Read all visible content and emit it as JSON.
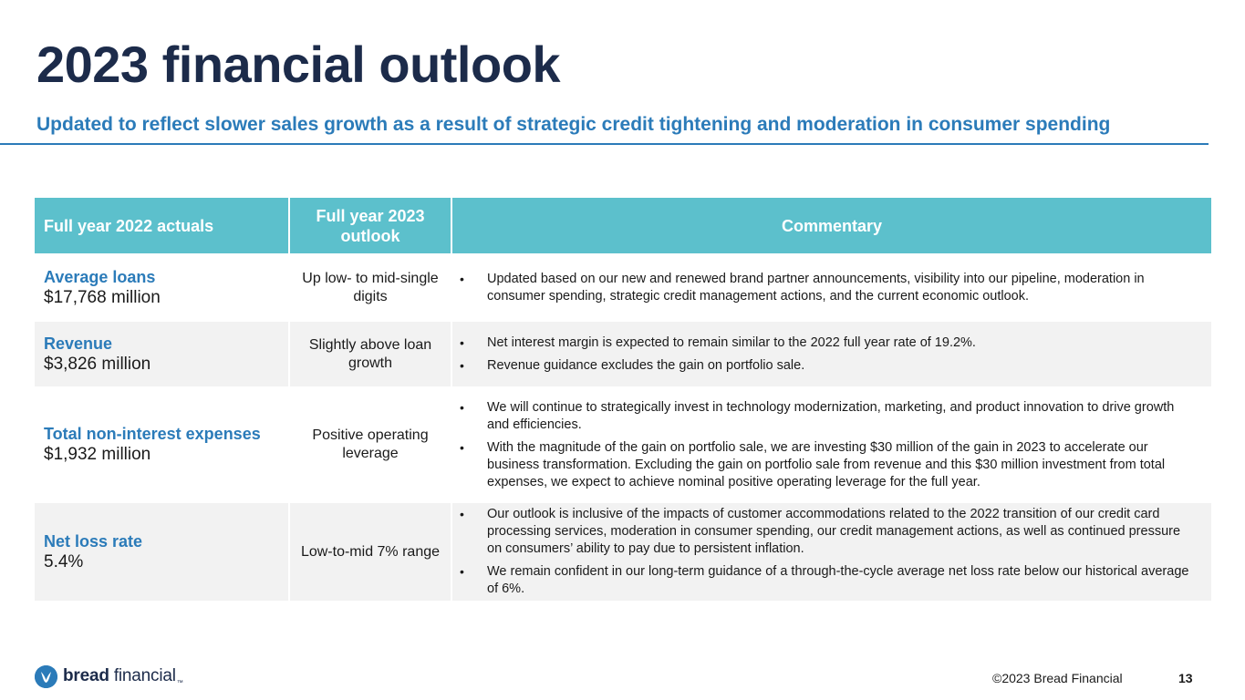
{
  "header": {
    "title": "2023 financial outlook",
    "subtitle": "Updated to reflect slower sales growth as a result of strategic credit tightening and moderation in consumer spending"
  },
  "table": {
    "columns": [
      "Full year 2022 actuals",
      "Full year 2023 outlook",
      "Commentary"
    ],
    "rows": [
      {
        "metric": "Average loans",
        "value": "$17,768 million",
        "outlook": "Up low- to mid-single digits",
        "commentary": [
          "Updated based on our new and renewed brand partner announcements, visibility into our pipeline, moderation in consumer spending, strategic credit management actions, and the current economic outlook."
        ]
      },
      {
        "metric": "Revenue",
        "value": "$3,826 million",
        "outlook": "Slightly above loan growth",
        "commentary": [
          "Net interest margin is expected to remain similar to the 2022 full year rate of 19.2%.",
          "Revenue guidance excludes the gain on portfolio sale."
        ]
      },
      {
        "metric": "Total non-interest expenses",
        "value": "$1,932 million",
        "outlook": "Positive operating leverage",
        "commentary": [
          "We will continue to strategically invest in technology modernization, marketing, and product innovation to drive growth and efficiencies.",
          "With the magnitude of the gain on portfolio sale, we are investing $30 million of the gain in 2023 to accelerate our business transformation. Excluding the gain on portfolio sale from revenue and this $30 million investment from total expenses, we expect to achieve nominal positive operating leverage for the full year."
        ]
      },
      {
        "metric": "Net loss rate",
        "value": "5.4%",
        "outlook": "Low-to-mid 7% range",
        "commentary": [
          "Our outlook is inclusive of the impacts of customer accommodations related to the 2022 transition of our credit card processing services, moderation in consumer spending, our credit management actions, as well as continued pressure on consumers’ ability to pay due to persistent inflation.",
          "We remain confident in our long-term guidance of a through-the-cycle average net loss rate below our historical average of 6%."
        ]
      }
    ]
  },
  "footer": {
    "logo_bold": "bread",
    "logo_light": " financial",
    "logo_tm": "™",
    "copyright": "©2023 Bread Financial",
    "page_number": "13"
  },
  "colors": {
    "title": "#1c2b4a",
    "accent_blue": "#2b7bb9",
    "header_teal": "#5cc0cc",
    "row_alt": "#f2f2f2"
  }
}
